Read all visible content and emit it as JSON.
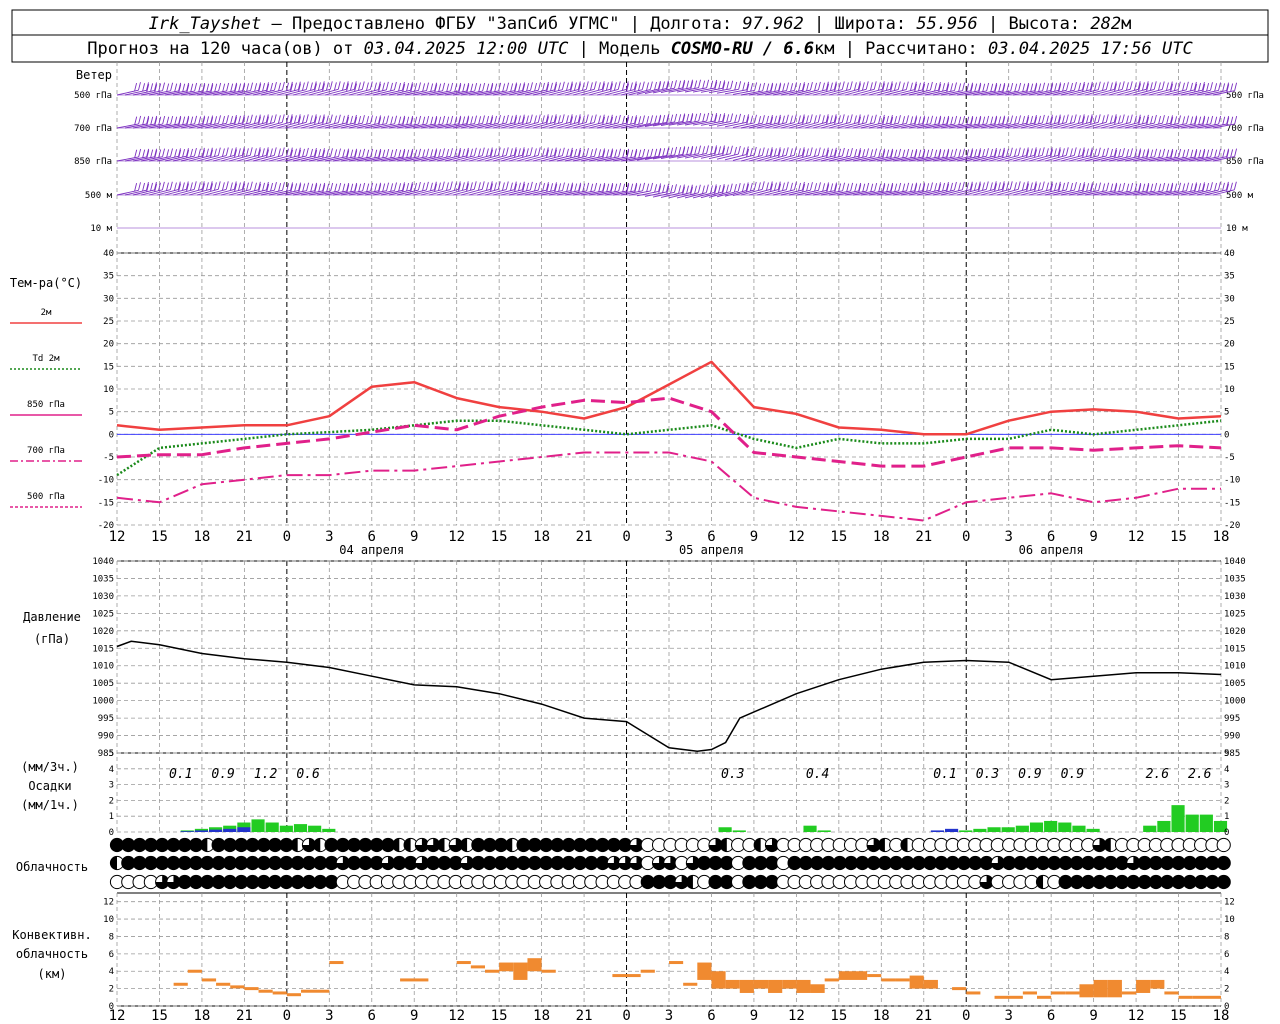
{
  "header": {
    "station": "Irk_Tayshet",
    "provider": " — Предоставлено ФГБУ \"ЗапСиб УГМС\" | Долгота: ",
    "longitude": "97.962",
    "lat_label": " | Широта: ",
    "latitude": "55.956",
    "alt_label": " | Высота: ",
    "altitude": "282",
    "alt_unit": "м",
    "forecast_label": "Прогноз на 120 часа(ов) от ",
    "forecast_from": "03.04.2025 12:00 UTC",
    "model_label": "  | Модель ",
    "model": "COSMO-RU / 6.6",
    "model_unit": "км",
    "calc_label": " | Рассчитано: ",
    "calc_time": "03.04.2025 17:56 UTC"
  },
  "labels": {
    "wind": "Ветер",
    "wind_levels": [
      "500 гПа",
      "700 гПа",
      "850 гПа",
      "500 м",
      "10  м"
    ],
    "temp_title": "Тем-ра(°C)",
    "temp_legend": [
      "2м",
      "Td  2м",
      "850 гПа",
      "700 гПа",
      "500 гПа"
    ],
    "pressure_title_1": "Давление",
    "pressure_title_2": "(гПа)",
    "precip_title_1": "(мм/3ч.)",
    "precip_title_2": "Осадки",
    "precip_title_3": "(мм/1ч.)",
    "cloud_title": "Облачность",
    "conv_title_1": "Конвективн.",
    "conv_title_2": "облачность",
    "conv_title_3": "(км)",
    "dates": [
      "04 апреля",
      "05 апреля",
      "06 апреля"
    ]
  },
  "colors": {
    "t2m": "#f04040",
    "td2m": "#1a8a1a",
    "t850": "#e0208a",
    "t700": "#e0208a",
    "t500": "#e0208a",
    "wind": "#7b2fc0",
    "pressure": "#000000",
    "precip_green": "#22cc22",
    "precip_blue": "#2233cc",
    "conv": "#f08a30",
    "zero_line": "#4040ff"
  },
  "chart_data": {
    "type": "line",
    "x_ticks": [
      "12",
      "15",
      "18",
      "21",
      "0",
      "3",
      "6",
      "9",
      "12",
      "15",
      "18",
      "21",
      "0",
      "3",
      "6",
      "9",
      "12",
      "15",
      "18",
      "21",
      "0",
      "3",
      "6",
      "9",
      "12",
      "15",
      "18"
    ],
    "x_hours": [
      0,
      3,
      6,
      9,
      12,
      15,
      18,
      21,
      24,
      27,
      30,
      33,
      36,
      39,
      42,
      45,
      48,
      51,
      54,
      57,
      60,
      63,
      66,
      69,
      72,
      75,
      78
    ],
    "temperature": {
      "ylim": [
        -20,
        40
      ],
      "y_ticks": [
        40,
        35,
        30,
        25,
        20,
        15,
        10,
        5,
        0,
        -5,
        -10,
        -15,
        -20
      ],
      "hours": [
        0,
        3,
        6,
        9,
        12,
        15,
        18,
        21,
        24,
        27,
        30,
        33,
        36,
        39,
        42,
        45,
        48,
        51,
        54,
        57,
        60,
        63,
        66,
        69,
        72,
        75,
        78
      ],
      "series": [
        {
          "name": "2м",
          "style": "solid",
          "width": 2.5,
          "color": "#f04040",
          "values": [
            2,
            1,
            1.5,
            2,
            2,
            4,
            10.5,
            11.5,
            8,
            6,
            5,
            3.5,
            6,
            11,
            16,
            6,
            4.5,
            1.5,
            1,
            0,
            0,
            3,
            5,
            5.5,
            5,
            3.5,
            4
          ]
        },
        {
          "name": "Td 2м",
          "style": "dotted",
          "width": 2.5,
          "color": "#1a8a1a",
          "values": [
            -9,
            -3,
            -2,
            -1,
            0,
            0.5,
            1,
            2,
            3,
            3,
            2,
            1,
            0,
            1,
            2,
            -1,
            -3,
            -1,
            -2,
            -2,
            -1,
            -1,
            1,
            0,
            1,
            2,
            3
          ]
        },
        {
          "name": "850 гПа",
          "style": "dashed",
          "width": 3,
          "color": "#e0208a",
          "values": [
            -5,
            -4.5,
            -4.5,
            -3,
            -2,
            -1,
            0.5,
            2,
            1,
            4,
            6,
            7.5,
            7,
            8,
            5,
            -4,
            -5,
            -6,
            -7,
            -7,
            -5,
            -3,
            -3,
            -3.5,
            -3,
            -2.5,
            -3
          ]
        },
        {
          "name": "700 гПа",
          "style": "dashdot",
          "width": 2,
          "color": "#e0208a",
          "values": [
            -14,
            -15,
            -11,
            -10,
            -9,
            -9,
            -8,
            -8,
            -7,
            -6,
            -5,
            -4,
            -4,
            -4,
            -6,
            -14,
            -16,
            -17,
            -18,
            -19,
            -15,
            -14,
            -13,
            -15,
            -14,
            -12,
            -12
          ]
        }
      ]
    },
    "pressure": {
      "ylim": [
        985,
        1040
      ],
      "y_ticks": [
        1040,
        1035,
        1030,
        1025,
        1020,
        1015,
        1010,
        1005,
        1000,
        995,
        990,
        985
      ],
      "hours": [
        0,
        1,
        3,
        6,
        9,
        12,
        15,
        18,
        21,
        24,
        27,
        30,
        33,
        36,
        39,
        41,
        42,
        43,
        44,
        48,
        51,
        54,
        57,
        60,
        63,
        66,
        69,
        72,
        75,
        78
      ],
      "values": [
        1015.5,
        1017,
        1016,
        1013.5,
        1012,
        1011,
        1009.5,
        1007,
        1004.5,
        1004,
        1002,
        999,
        995,
        994,
        986.5,
        985.5,
        986,
        988,
        995,
        1002,
        1006,
        1009,
        1011,
        1011.5,
        1011,
        1006,
        1007,
        1008,
        1008,
        1007.5
      ]
    },
    "precipitation": {
      "ylim": [
        0,
        5
      ],
      "y_ticks": [
        5,
        4,
        3,
        2,
        1,
        0
      ],
      "totals_3h": [
        {
          "hour": 4.5,
          "label": "0.1"
        },
        {
          "hour": 7.5,
          "label": "0.9"
        },
        {
          "hour": 10.5,
          "label": "1.2"
        },
        {
          "hour": 13.5,
          "label": "0.6"
        },
        {
          "hour": 43.5,
          "label": "0.3"
        },
        {
          "hour": 49.5,
          "label": "0.4"
        },
        {
          "hour": 58.5,
          "label": "0.1"
        },
        {
          "hour": 61.5,
          "label": "0.3"
        },
        {
          "hour": 64.5,
          "label": "0.9"
        },
        {
          "hour": 67.5,
          "label": "0.9"
        },
        {
          "hour": 73.5,
          "label": "2.6"
        },
        {
          "hour": 76.5,
          "label": "2.6"
        }
      ],
      "hourly_green": [
        [
          5,
          0.1
        ],
        [
          6,
          0.2
        ],
        [
          7,
          0.3
        ],
        [
          8,
          0.4
        ],
        [
          9,
          0.6
        ],
        [
          10,
          0.8
        ],
        [
          11,
          0.6
        ],
        [
          12,
          0.4
        ],
        [
          13,
          0.5
        ],
        [
          14,
          0.4
        ],
        [
          15,
          0.2
        ],
        [
          43,
          0.3
        ],
        [
          44,
          0.1
        ],
        [
          49,
          0.4
        ],
        [
          50,
          0.1
        ],
        [
          60,
          0.1
        ],
        [
          61,
          0.2
        ],
        [
          62,
          0.3
        ],
        [
          63,
          0.3
        ],
        [
          64,
          0.4
        ],
        [
          65,
          0.6
        ],
        [
          66,
          0.7
        ],
        [
          67,
          0.6
        ],
        [
          68,
          0.4
        ],
        [
          69,
          0.2
        ],
        [
          73,
          0.4
        ],
        [
          74,
          0.7
        ],
        [
          75,
          1.7
        ],
        [
          76,
          1.1
        ],
        [
          77,
          1.1
        ],
        [
          78,
          0.7
        ]
      ],
      "hourly_blue": [
        [
          5,
          0.05
        ],
        [
          6,
          0.1
        ],
        [
          7,
          0.15
        ],
        [
          8,
          0.2
        ],
        [
          9,
          0.3
        ],
        [
          58,
          0.1
        ],
        [
          59,
          0.2
        ]
      ]
    },
    "clouds": {
      "rows": 3,
      "row_patterns": [
        "FFFFFFFFHFFFFFFFHQHFFFFFFHHQQHQHFFFHFFFFFFFFFFQEEEEEEQHEEHQEEEEEEEEQHEHEEEEEEEEEEEEEEEEQHEEEEEEEEEE",
        "HFFFFFFFFFFFFFFFFFFFQFFFQFFQFFFQFFFFFFFFFFFFQQQEQQEQFFFEFFFEFFFFFFFFFFFFFFFFFFQFFFFFFFFFFFQFFFFFFFF",
        "EEEEQQFFFFFFFFFFFFFFEEEEEEEEEEEEEEEEEEEEEEEEEEEFFFQHEFFEFFFEEEEEEEEEEEEEEEEEEQEEEEHEFFFFFFFFFFFFFFF"
      ]
    },
    "convective": {
      "ylim": [
        0,
        13
      ],
      "y_ticks": [
        12,
        10,
        8,
        6,
        4,
        2,
        0
      ],
      "segments": [
        [
          4,
          5,
          2.5,
          2.5
        ],
        [
          5,
          6,
          4,
          4
        ],
        [
          6,
          7,
          3,
          3
        ],
        [
          7,
          8,
          2.5,
          2.5
        ],
        [
          8,
          9,
          2.2,
          2.2
        ],
        [
          9,
          10,
          2,
          2
        ],
        [
          10,
          11,
          1.7,
          1.7
        ],
        [
          11,
          12,
          1.5,
          1.5
        ],
        [
          12,
          13,
          1.3,
          1.3
        ],
        [
          13,
          15,
          1.7,
          1.7
        ],
        [
          15,
          16,
          5,
          5
        ],
        [
          20,
          22,
          3,
          3
        ],
        [
          24,
          25,
          5,
          5
        ],
        [
          25,
          26,
          4.5,
          4.5
        ],
        [
          26,
          27,
          4,
          4
        ],
        [
          27,
          28,
          4,
          5
        ],
        [
          28,
          29,
          3,
          5
        ],
        [
          29,
          30,
          4,
          5.5
        ],
        [
          30,
          31,
          4,
          4
        ],
        [
          35,
          37,
          3.5,
          3.5
        ],
        [
          37,
          38,
          4,
          4
        ],
        [
          39,
          40,
          5,
          5
        ],
        [
          40,
          41,
          2.5,
          2.5
        ],
        [
          41,
          42,
          3,
          5
        ],
        [
          42,
          43,
          2,
          4
        ],
        [
          43,
          44,
          2,
          3
        ],
        [
          44,
          45,
          1.5,
          3
        ],
        [
          45,
          46,
          2,
          3
        ],
        [
          46,
          47,
          1.5,
          3
        ],
        [
          47,
          48,
          2,
          3
        ],
        [
          48,
          49,
          1.5,
          3
        ],
        [
          49,
          50,
          1.5,
          2.5
        ],
        [
          50,
          51,
          3,
          3
        ],
        [
          51,
          52,
          3,
          4
        ],
        [
          52,
          53,
          3,
          4
        ],
        [
          53,
          54,
          3.5,
          3.5
        ],
        [
          54,
          55,
          3,
          3
        ],
        [
          55,
          56,
          3,
          3
        ],
        [
          56,
          57,
          2,
          3.5
        ],
        [
          57,
          58,
          2,
          3
        ],
        [
          59,
          60,
          2,
          2
        ],
        [
          60,
          61,
          1.5,
          1.5
        ],
        [
          62,
          64,
          1,
          1
        ],
        [
          64,
          65,
          1.5,
          1.5
        ],
        [
          65,
          66,
          1,
          1
        ],
        [
          66,
          67,
          1.5,
          1.5
        ],
        [
          67,
          68,
          1.5,
          1.5
        ],
        [
          68,
          69,
          1,
          2.5
        ],
        [
          69,
          70,
          1,
          3
        ],
        [
          70,
          71,
          1,
          3
        ],
        [
          71,
          72,
          1.5,
          1.5
        ],
        [
          72,
          73,
          1.5,
          3
        ],
        [
          73,
          74,
          2,
          3
        ],
        [
          74,
          75,
          1.5,
          1.5
        ],
        [
          75,
          76,
          1,
          1
        ],
        [
          76,
          78,
          1,
          1
        ]
      ]
    },
    "wind": {
      "levels": [
        "500 гПа",
        "700 гПа",
        "850 гПа",
        "500 м",
        "10  м"
      ]
    }
  }
}
